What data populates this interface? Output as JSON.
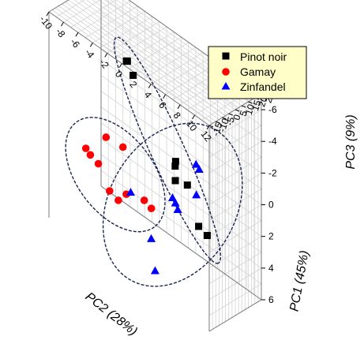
{
  "chart_data": {
    "type": "scatter",
    "dimensions": 3,
    "title": "",
    "axes": {
      "pc2": {
        "label": "PC2 (28%)",
        "range": [
          -10,
          12
        ],
        "ticks": [
          -10,
          -8,
          -6,
          -4,
          -2,
          0,
          2,
          4,
          6,
          8,
          10,
          12
        ]
      },
      "pc1": {
        "label": "PC1 (45%)",
        "range": [
          -15,
          25
        ],
        "ticks": [
          -15,
          -10,
          -5,
          0,
          5,
          10,
          15,
          20,
          25
        ]
      },
      "pc3": {
        "label": "PC3 (9%)",
        "range": [
          -7,
          6
        ],
        "ticks": [
          -6,
          -4,
          -2,
          0,
          2,
          4,
          6
        ],
        "reversed": true
      }
    },
    "grid": true,
    "legend_position": "top-right",
    "series": [
      {
        "name": "Pinot noir",
        "marker": "square",
        "color": "#000000",
        "points": [
          {
            "pc2": -1.2,
            "pc1": -4,
            "pc3": -6.2
          },
          {
            "pc2": -0.8,
            "pc1": -7,
            "pc3": -6.5
          },
          {
            "pc2": 0.3,
            "pc1": -8,
            "pc3": -6.0
          },
          {
            "pc2": 4.7,
            "pc1": 0,
            "pc3": -1.6
          },
          {
            "pc2": 5.0,
            "pc1": -2,
            "pc3": -1.5
          },
          {
            "pc2": 5.2,
            "pc1": -3,
            "pc3": -0.7
          },
          {
            "pc2": 5.6,
            "pc1": 4,
            "pc3": -0.2
          },
          {
            "pc2": 5.0,
            "pc1": 16,
            "pc3": 3.2
          },
          {
            "pc2": 6.0,
            "pc1": 17,
            "pc3": 3.5
          }
        ]
      },
      {
        "name": "Gamay",
        "marker": "circle",
        "color": "#ff0000",
        "points": [
          {
            "pc2": -5.2,
            "pc1": 2,
            "pc3": 0.2
          },
          {
            "pc2": -7.8,
            "pc1": 1,
            "pc3": 1.7
          },
          {
            "pc2": -7.0,
            "pc1": 0,
            "pc3": 1.8
          },
          {
            "pc2": -5.9,
            "pc1": 0,
            "pc3": 2.0
          },
          {
            "pc2": -3.6,
            "pc1": 6,
            "pc3": 0.5
          },
          {
            "pc2": -4.0,
            "pc1": -2,
            "pc3": 3.0
          },
          {
            "pc2": -2.8,
            "pc1": -2,
            "pc3": 3.2
          },
          {
            "pc2": -2.6,
            "pc1": 3,
            "pc3": 3.0
          },
          {
            "pc2": -0.5,
            "pc1": 5,
            "pc3": 2.8
          },
          {
            "pc2": 0.3,
            "pc1": 6,
            "pc3": 3.1
          }
        ]
      },
      {
        "name": "Zinfandel",
        "marker": "triangle",
        "color": "#0000ff",
        "points": [
          {
            "pc2": 5.0,
            "pc1": 14,
            "pc3": -0.8
          },
          {
            "pc2": 4.9,
            "pc1": 17,
            "pc3": -0.3
          },
          {
            "pc2": 5.4,
            "pc1": 12,
            "pc3": 0.9
          },
          {
            "pc2": 3.2,
            "pc1": 6,
            "pc3": 1.5
          },
          {
            "pc2": 3.6,
            "pc1": 6,
            "pc3": 1.7
          },
          {
            "pc2": 4.1,
            "pc1": 5,
            "pc3": 1.9
          },
          {
            "pc2": -2.0,
            "pc1": 3,
            "pc3": 2.7
          },
          {
            "pc2": 1.0,
            "pc1": 2,
            "pc3": 4.6
          },
          {
            "pc2": 2.6,
            "pc1": -4,
            "pc3": 5.8
          }
        ]
      }
    ]
  }
}
